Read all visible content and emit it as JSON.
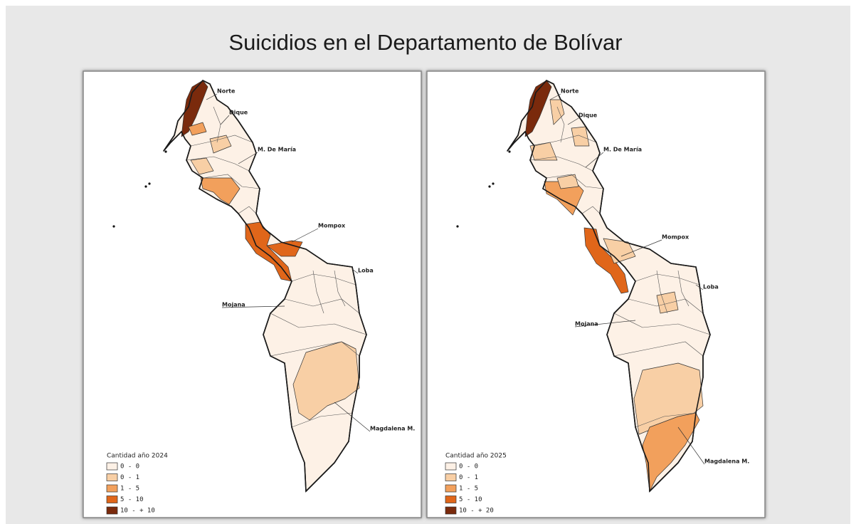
{
  "title": "Suicidios en el Departamento de Bolívar",
  "maps": [
    {
      "legend_title": "Cantidad año 2024",
      "legend": [
        {
          "label": "0 - 0",
          "color": "#fdf1e6"
        },
        {
          "label": "0 - 1",
          "color": "#f8cfa5"
        },
        {
          "label": "1 - 5",
          "color": "#f2a05c"
        },
        {
          "label": "5 - 10",
          "color": "#e0661a"
        },
        {
          "label": "10 - + 10",
          "color": "#7a2a0c"
        }
      ],
      "regions": [
        "Norte",
        "Dique",
        "M. De María",
        "Mompox",
        "Loba",
        "Mojana",
        "Magdalena M."
      ]
    },
    {
      "legend_title": "Cantidad año 2025",
      "legend": [
        {
          "label": "0 - 0",
          "color": "#fdf1e6"
        },
        {
          "label": "0 - 1",
          "color": "#f8cfa5"
        },
        {
          "label": "1 - 5",
          "color": "#f2a05c"
        },
        {
          "label": "5 - 10",
          "color": "#e0661a"
        },
        {
          "label": "10 - + 20",
          "color": "#7a2a0c"
        }
      ],
      "regions": [
        "Norte",
        "Dique",
        "M. De María",
        "Mompox",
        "Loba",
        "Mojana",
        "Magdalena M."
      ]
    }
  ]
}
